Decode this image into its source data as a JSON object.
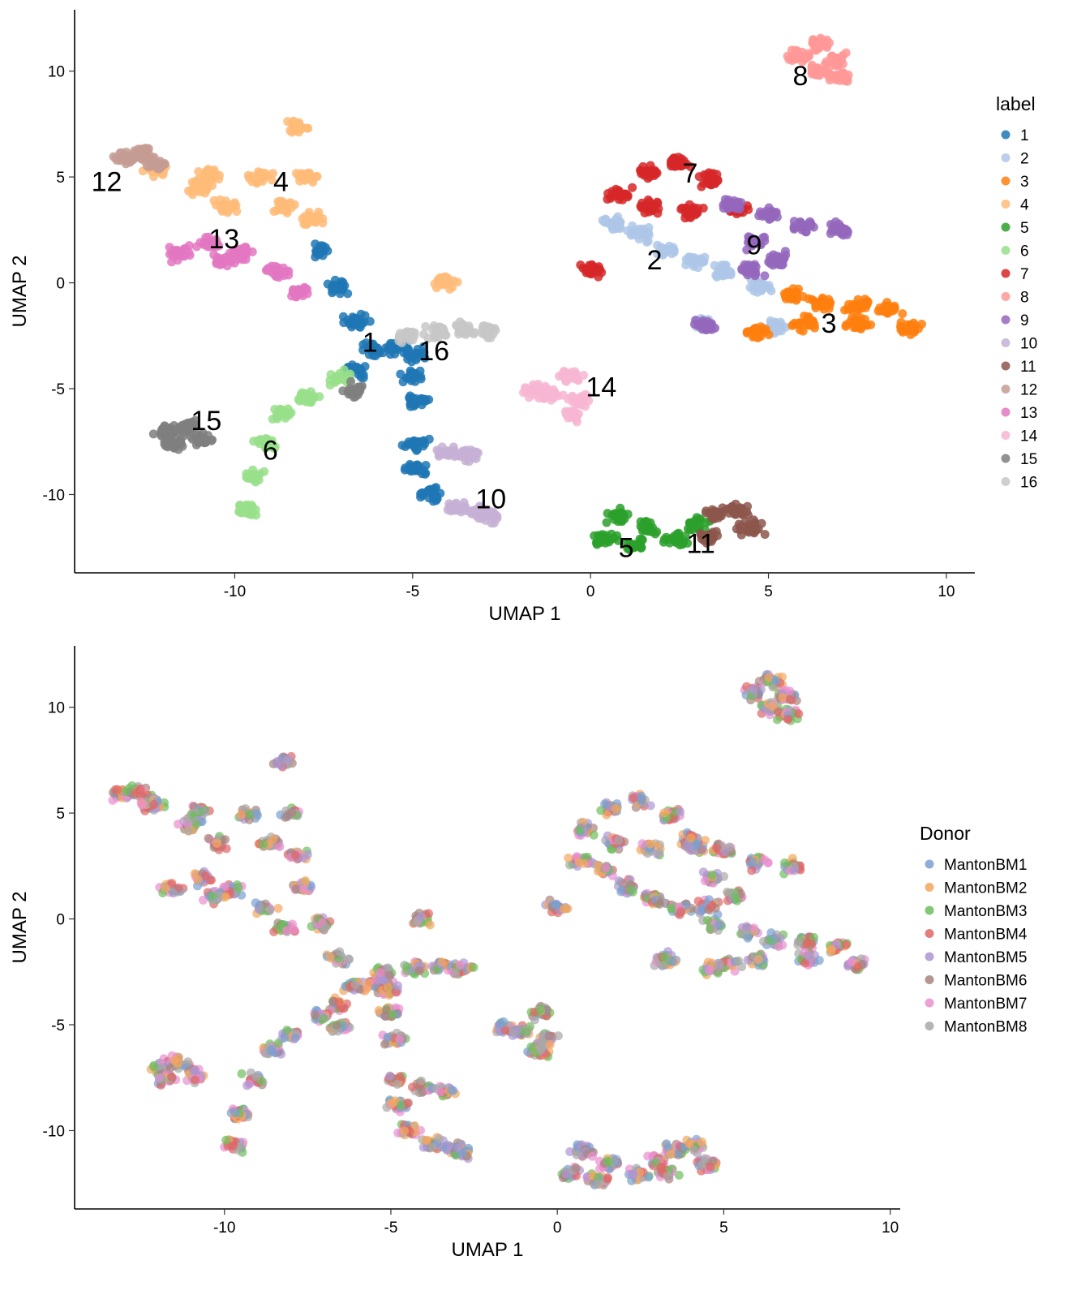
{
  "chart_data": [
    {
      "type": "scatter",
      "xlabel": "UMAP 1",
      "ylabel": "UMAP 2",
      "xlim": [
        -14.5,
        10.8
      ],
      "ylim": [
        -13.7,
        12.9
      ],
      "xticks": [
        -10,
        -5,
        0,
        5,
        10
      ],
      "yticks": [
        -10,
        -5,
        0,
        5,
        10
      ],
      "grid": false,
      "legend": {
        "title": "label",
        "position": "right"
      },
      "series": [
        {
          "name": "1",
          "color": "#1f77b4"
        },
        {
          "name": "2",
          "color": "#aec7e8"
        },
        {
          "name": "3",
          "color": "#ff7f0e"
        },
        {
          "name": "4",
          "color": "#ffbb78"
        },
        {
          "name": "5",
          "color": "#2ca02c"
        },
        {
          "name": "6",
          "color": "#98df8a"
        },
        {
          "name": "7",
          "color": "#d62728"
        },
        {
          "name": "8",
          "color": "#ff9896"
        },
        {
          "name": "9",
          "color": "#9467bd"
        },
        {
          "name": "10",
          "color": "#c5b0d5"
        },
        {
          "name": "11",
          "color": "#8c564b"
        },
        {
          "name": "12",
          "color": "#c49c94"
        },
        {
          "name": "13",
          "color": "#e377c2"
        },
        {
          "name": "14",
          "color": "#f7b6d2"
        },
        {
          "name": "15",
          "color": "#7f7f7f"
        },
        {
          "name": "16",
          "color": "#c7c7c7"
        }
      ],
      "annotations": [
        {
          "text": "1",
          "x": -6.2,
          "y": -2.8
        },
        {
          "text": "2",
          "x": 1.8,
          "y": 1.1
        },
        {
          "text": "3",
          "x": 6.7,
          "y": -1.9
        },
        {
          "text": "4",
          "x": -8.7,
          "y": 4.8
        },
        {
          "text": "5",
          "x": 1.0,
          "y": -12.5
        },
        {
          "text": "6",
          "x": -9.0,
          "y": -7.9
        },
        {
          "text": "7",
          "x": 2.8,
          "y": 5.2
        },
        {
          "text": "8",
          "x": 5.9,
          "y": 9.8
        },
        {
          "text": "9",
          "x": 4.6,
          "y": 1.8
        },
        {
          "text": "10",
          "x": -2.8,
          "y": -10.2
        },
        {
          "text": "11",
          "x": 3.1,
          "y": -12.3
        },
        {
          "text": "12",
          "x": -13.6,
          "y": 4.8
        },
        {
          "text": "13",
          "x": -10.3,
          "y": 2.1
        },
        {
          "text": "14",
          "x": 0.3,
          "y": -4.9
        },
        {
          "text": "15",
          "x": -10.8,
          "y": -6.5
        },
        {
          "text": "16",
          "x": -4.4,
          "y": -3.2
        }
      ],
      "clusters": [
        {
          "label": "1",
          "points": [
            [
              -7.6,
              1.5
            ],
            [
              -7.1,
              -0.2
            ],
            [
              -6.6,
              -1.8
            ],
            [
              -6.1,
              -3.2
            ],
            [
              -5.5,
              -3.0
            ],
            [
              -5.0,
              -3.3
            ],
            [
              -5.0,
              -4.4
            ],
            [
              -6.6,
              -4.1
            ],
            [
              -4.9,
              -5.6
            ],
            [
              -4.9,
              -7.6
            ],
            [
              -4.9,
              -8.8
            ],
            [
              -4.5,
              -10.0
            ]
          ]
        },
        {
          "label": "2",
          "points": [
            [
              0.7,
              2.8
            ],
            [
              1.4,
              2.3
            ],
            [
              2.1,
              1.5
            ],
            [
              2.9,
              1.0
            ],
            [
              3.7,
              0.5
            ],
            [
              4.7,
              -0.2
            ],
            [
              3.2,
              -1.9
            ],
            [
              5.2,
              -2.1
            ]
          ]
        },
        {
          "label": "3",
          "points": [
            [
              5.7,
              -0.6
            ],
            [
              6.5,
              -1.0
            ],
            [
              7.5,
              -1.1
            ],
            [
              8.4,
              -1.3
            ],
            [
              9.0,
              -2.1
            ],
            [
              6.0,
              -1.9
            ],
            [
              7.5,
              -1.9
            ],
            [
              4.7,
              -2.3
            ]
          ]
        },
        {
          "label": "4",
          "points": [
            [
              -12.2,
              5.4
            ],
            [
              -10.7,
              5.1
            ],
            [
              -9.3,
              5.0
            ],
            [
              -8.0,
              5.0
            ],
            [
              -10.2,
              3.6
            ],
            [
              -8.6,
              3.6
            ],
            [
              -7.8,
              3.0
            ],
            [
              -8.2,
              7.4
            ],
            [
              -11.0,
              4.5
            ],
            [
              -4.1,
              0.0
            ]
          ]
        },
        {
          "label": "5",
          "points": [
            [
              0.8,
              -11.0
            ],
            [
              1.6,
              -11.6
            ],
            [
              2.4,
              -12.1
            ],
            [
              3.0,
              -11.4
            ],
            [
              0.4,
              -12.0
            ],
            [
              1.2,
              -12.3
            ]
          ]
        },
        {
          "label": "6",
          "points": [
            [
              -8.0,
              -5.4
            ],
            [
              -8.6,
              -6.2
            ],
            [
              -9.1,
              -7.6
            ],
            [
              -9.5,
              -9.2
            ],
            [
              -9.7,
              -10.7
            ],
            [
              -7.1,
              -4.5
            ]
          ]
        },
        {
          "label": "7",
          "points": [
            [
              0.8,
              4.2
            ],
            [
              1.6,
              5.2
            ],
            [
              2.5,
              5.6
            ],
            [
              3.4,
              4.9
            ],
            [
              1.7,
              3.6
            ],
            [
              2.8,
              3.4
            ],
            [
              4.2,
              3.4
            ],
            [
              0.0,
              0.6
            ]
          ]
        },
        {
          "label": "8",
          "points": [
            [
              5.9,
              10.7
            ],
            [
              6.4,
              11.3
            ],
            [
              6.9,
              10.5
            ],
            [
              6.4,
              10.0
            ],
            [
              7.0,
              9.7
            ]
          ]
        },
        {
          "label": "9",
          "points": [
            [
              4.0,
              3.7
            ],
            [
              5.0,
              3.3
            ],
            [
              6.0,
              2.7
            ],
            [
              7.0,
              2.5
            ],
            [
              4.6,
              1.9
            ],
            [
              5.3,
              1.1
            ],
            [
              4.5,
              0.6
            ],
            [
              3.2,
              -2.0
            ]
          ]
        },
        {
          "label": "10",
          "points": [
            [
              -4.0,
              -8.0
            ],
            [
              -3.4,
              -8.1
            ],
            [
              -3.1,
              -10.8
            ],
            [
              -3.8,
              -10.6
            ],
            [
              -2.9,
              -11.0
            ]
          ]
        },
        {
          "label": "11",
          "points": [
            [
              3.5,
              -10.9
            ],
            [
              4.1,
              -10.7
            ],
            [
              4.5,
              -11.6
            ],
            [
              3.3,
              -12.0
            ]
          ]
        },
        {
          "label": "12",
          "points": [
            [
              -13.1,
              5.9
            ],
            [
              -12.6,
              6.1
            ],
            [
              -12.2,
              5.6
            ]
          ]
        },
        {
          "label": "13",
          "points": [
            [
              -11.6,
              1.4
            ],
            [
              -10.7,
              1.9
            ],
            [
              -9.8,
              1.4
            ],
            [
              -8.8,
              0.5
            ],
            [
              -8.2,
              -0.4
            ],
            [
              -10.3,
              1.1
            ]
          ]
        },
        {
          "label": "14",
          "points": [
            [
              -1.6,
              -5.1
            ],
            [
              -1.1,
              -5.3
            ],
            [
              -0.5,
              -4.4
            ],
            [
              -0.3,
              -5.6
            ],
            [
              -0.5,
              -6.2
            ]
          ]
        },
        {
          "label": "15",
          "points": [
            [
              -11.9,
              -7.0
            ],
            [
              -11.3,
              -6.8
            ],
            [
              -10.9,
              -7.4
            ],
            [
              -11.7,
              -7.6
            ],
            [
              -6.6,
              -5.1
            ]
          ]
        },
        {
          "label": "16",
          "points": [
            [
              -5.2,
              -2.5
            ],
            [
              -4.3,
              -2.3
            ],
            [
              -3.5,
              -2.2
            ],
            [
              -2.9,
              -2.3
            ]
          ]
        }
      ]
    },
    {
      "type": "scatter",
      "xlabel": "UMAP 1",
      "ylabel": "UMAP 2",
      "xlim": [
        -14.5,
        10.3
      ],
      "ylim": [
        -13.7,
        12.9
      ],
      "xticks": [
        -10,
        -5,
        0,
        5,
        10
      ],
      "yticks": [
        -10,
        -5,
        0,
        5,
        10
      ],
      "grid": false,
      "legend": {
        "title": "Donor",
        "position": "right"
      },
      "series": [
        {
          "name": "MantonBM1",
          "color": "#7a9fd1"
        },
        {
          "name": "MantonBM2",
          "color": "#f4a65e"
        },
        {
          "name": "MantonBM3",
          "color": "#6ebd5c"
        },
        {
          "name": "MantonBM4",
          "color": "#e06666"
        },
        {
          "name": "MantonBM5",
          "color": "#ad95d1"
        },
        {
          "name": "MantonBM6",
          "color": "#a8847c"
        },
        {
          "name": "MantonBM7",
          "color": "#ea8fcf"
        },
        {
          "name": "MantonBM8",
          "color": "#a8a8a8"
        }
      ]
    }
  ]
}
